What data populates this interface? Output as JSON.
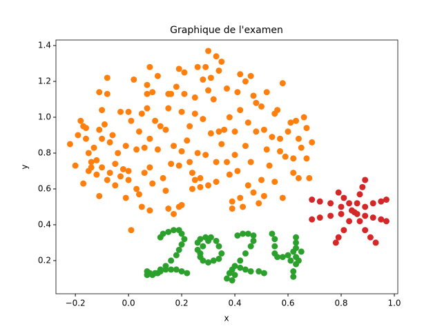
{
  "chart_data": {
    "type": "scatter",
    "title": "Graphique de l'examen",
    "x_label": "x",
    "y_label": "y",
    "xlim": [
      -0.273,
      1.013
    ],
    "ylim": [
      0.015,
      1.431
    ],
    "xticks": [
      {
        "value": -0.2,
        "label": "−0.2"
      },
      {
        "value": 0,
        "label": "0.0"
      },
      {
        "value": 0.2,
        "label": "0.2"
      },
      {
        "value": 0.4,
        "label": "0.4"
      },
      {
        "value": 0.6,
        "label": "0.6"
      },
      {
        "value": 0.8,
        "label": "0.8"
      },
      {
        "value": 1.0,
        "label": "1.0"
      }
    ],
    "yticks": [
      {
        "value": 0.2,
        "label": "0.2"
      },
      {
        "value": 0.4,
        "label": "0.4"
      },
      {
        "value": 0.6,
        "label": "0.6"
      },
      {
        "value": 0.8,
        "label": "0.8"
      },
      {
        "value": 1.0,
        "label": "1.0"
      },
      {
        "value": 1.2,
        "label": "1.2"
      },
      {
        "value": 1.4,
        "label": "1.4"
      }
    ],
    "series": [
      {
        "color": "#ff7f0e",
        "x": [
          -0.22,
          -0.2,
          -0.19,
          -0.18,
          -0.17,
          -0.17,
          -0.16,
          -0.16,
          -0.15,
          -0.15,
          -0.14,
          -0.14,
          -0.13,
          -0.12,
          -0.12,
          -0.11,
          -0.11,
          -0.11,
          -0.1,
          -0.1,
          -0.1,
          -0.09,
          -0.08,
          -0.08,
          -0.08,
          -0.07,
          -0.07,
          -0.06,
          -0.05,
          -0.05,
          -0.04,
          -0.03,
          -0.03,
          -0.02,
          -0.01,
          -0.01,
          0.0,
          0.0,
          0.0,
          0.01,
          0.01,
          0.02,
          0.03,
          0.03,
          0.04,
          0.04,
          0.05,
          0.05,
          0.06,
          0.06,
          0.07,
          0.07,
          0.07,
          0.08,
          0.08,
          0.08,
          0.08,
          0.09,
          0.09,
          0.1,
          0.11,
          0.11,
          0.12,
          0.13,
          0.14,
          0.14,
          0.15,
          0.15,
          0.15,
          0.16,
          0.16,
          0.17,
          0.17,
          0.18,
          0.19,
          0.19,
          0.19,
          0.2,
          0.2,
          0.2,
          0.21,
          0.21,
          0.22,
          0.23,
          0.23,
          0.24,
          0.24,
          0.25,
          0.25,
          0.25,
          0.26,
          0.26,
          0.27,
          0.27,
          0.28,
          0.28,
          0.29,
          0.29,
          0.3,
          0.3,
          0.3,
          0.31,
          0.31,
          0.32,
          0.33,
          0.33,
          0.33,
          0.34,
          0.34,
          0.35,
          0.35,
          0.36,
          0.37,
          0.37,
          0.38,
          0.38,
          0.39,
          0.39,
          0.4,
          0.4,
          0.41,
          0.41,
          0.42,
          0.42,
          0.42,
          0.43,
          0.44,
          0.44,
          0.45,
          0.45,
          0.46,
          0.46,
          0.47,
          0.47,
          0.48,
          0.48,
          0.49,
          0.5,
          0.5,
          0.51,
          0.51,
          0.52,
          0.52,
          0.53,
          0.54,
          0.55,
          0.55,
          0.56,
          0.57,
          0.57,
          0.58,
          0.58,
          0.59,
          0.6,
          0.61,
          0.62,
          0.62,
          0.63,
          0.64,
          0.64,
          0.65,
          0.66,
          0.67,
          0.67,
          0.68,
          0.69
        ],
        "values": [
          0.85,
          0.73,
          0.9,
          0.98,
          0.95,
          0.63,
          0.88,
          0.94,
          0.8,
          0.7,
          0.72,
          0.75,
          0.83,
          0.76,
          0.68,
          0.56,
          0.93,
          1.14,
          1.04,
          0.88,
          0.72,
          0.96,
          1.22,
          1.13,
          0.65,
          0.86,
          0.69,
          0.9,
          0.74,
          0.62,
          0.8,
          1.03,
          0.67,
          0.71,
          0.84,
          0.55,
          1.03,
          0.65,
          0.7,
          0.37,
          0.98,
          1.21,
          0.82,
          0.6,
          0.92,
          0.57,
          1.02,
          0.5,
          0.69,
          0.83,
          1.18,
          1.13,
          1.05,
          1.28,
          0.88,
          0.72,
          0.48,
          1.14,
          0.63,
          0.98,
          1.23,
          0.82,
          0.95,
          0.66,
          0.93,
          0.59,
          1.13,
          1.05,
          0.49,
          1.13,
          0.74,
          0.84,
          0.46,
          1.17,
          1.27,
          0.73,
          0.5,
          1.03,
          0.81,
          0.51,
          1.25,
          1.13,
          0.87,
          0.95,
          0.75,
          0.69,
          0.6,
          1.11,
          1.02,
          0.65,
          1.28,
          0.8,
          0.61,
          0.66,
          1.21,
          0.99,
          1.28,
          0.79,
          1.37,
          1.15,
          0.62,
          1.22,
          0.91,
          1.1,
          1.34,
          0.75,
          0.64,
          1.26,
          0.92,
          0.85,
          1.31,
          0.93,
          1.16,
          0.75,
          1.0,
          0.68,
          0.53,
          0.49,
          0.92,
          0.79,
          1.14,
          0.7,
          1.24,
          1.04,
          0.55,
          0.5,
          1.2,
          0.84,
          0.97,
          0.62,
          1.23,
          0.75,
          1.12,
          0.58,
          1.08,
          0.92,
          0.52,
          1.06,
          0.65,
          0.93,
          0.56,
          1.14,
          0.82,
          0.73,
          0.89,
          1.02,
          0.64,
          1.04,
          0.88,
          0.81,
          1.19,
          0.55,
          0.78,
          0.92,
          0.97,
          0.77,
          0.69,
          0.98,
          0.88,
          0.66,
          0.83,
          1.0,
          0.94,
          0.77,
          0.66,
          0.86
        ]
      },
      {
        "color": "#2ca02c",
        "x": [
          0.12,
          0.13,
          0.15,
          0.17,
          0.19,
          0.2,
          0.21,
          0.2,
          0.19,
          0.18,
          0.16,
          0.14,
          0.12,
          0.1,
          0.07,
          0.07,
          0.08,
          0.09,
          0.11,
          0.12,
          0.14,
          0.16,
          0.18,
          0.2,
          0.22,
          0.26,
          0.26,
          0.27,
          0.29,
          0.31,
          0.33,
          0.34,
          0.35,
          0.34,
          0.32,
          0.3,
          0.28,
          0.27,
          0.27,
          0.28,
          0.3,
          0.41,
          0.43,
          0.45,
          0.47,
          0.47,
          0.46,
          0.44,
          0.42,
          0.4,
          0.38,
          0.37,
          0.39,
          0.4,
          0.39,
          0.42,
          0.44,
          0.46,
          0.49,
          0.51,
          0.54,
          0.55,
          0.55,
          0.55,
          0.56,
          0.58,
          0.6,
          0.62,
          0.63,
          0.63,
          0.63,
          0.63,
          0.63,
          0.62,
          0.62,
          0.61,
          0.65,
          0.64
        ],
        "values": [
          0.33,
          0.35,
          0.36,
          0.37,
          0.37,
          0.35,
          0.32,
          0.29,
          0.26,
          0.23,
          0.2,
          0.17,
          0.15,
          0.13,
          0.12,
          0.14,
          0.13,
          0.12,
          0.13,
          0.14,
          0.15,
          0.15,
          0.15,
          0.14,
          0.13,
          0.26,
          0.3,
          0.32,
          0.33,
          0.33,
          0.31,
          0.28,
          0.24,
          0.21,
          0.2,
          0.19,
          0.2,
          0.22,
          0.24,
          0.28,
          0.31,
          0.34,
          0.35,
          0.35,
          0.34,
          0.31,
          0.28,
          0.24,
          0.2,
          0.17,
          0.13,
          0.1,
          0.09,
          0.12,
          0.15,
          0.16,
          0.15,
          0.14,
          0.14,
          0.13,
          0.35,
          0.32,
          0.28,
          0.24,
          0.22,
          0.22,
          0.23,
          0.25,
          0.3,
          0.33,
          0.27,
          0.22,
          0.18,
          0.14,
          0.11,
          0.2,
          0.25,
          0.2
        ]
      },
      {
        "color": "#d62728",
        "x": [
          0.85,
          0.84,
          0.86,
          0.86,
          0.87,
          0.88,
          0.89,
          0.83,
          0.81,
          0.79,
          0.8,
          0.76,
          0.72,
          0.69,
          0.8,
          0.76,
          0.72,
          0.69,
          0.83,
          0.81,
          0.79,
          0.78,
          0.87,
          0.89,
          0.91,
          0.93,
          0.89,
          0.92,
          0.95,
          0.97,
          0.89,
          0.92,
          0.95,
          0.97
        ],
        "values": [
          0.47,
          0.48,
          0.46,
          0.52,
          0.57,
          0.61,
          0.65,
          0.52,
          0.55,
          0.58,
          0.5,
          0.52,
          0.53,
          0.54,
          0.46,
          0.45,
          0.44,
          0.43,
          0.42,
          0.37,
          0.33,
          0.3,
          0.42,
          0.37,
          0.33,
          0.3,
          0.5,
          0.52,
          0.53,
          0.54,
          0.45,
          0.44,
          0.43,
          0.42
        ]
      }
    ]
  }
}
